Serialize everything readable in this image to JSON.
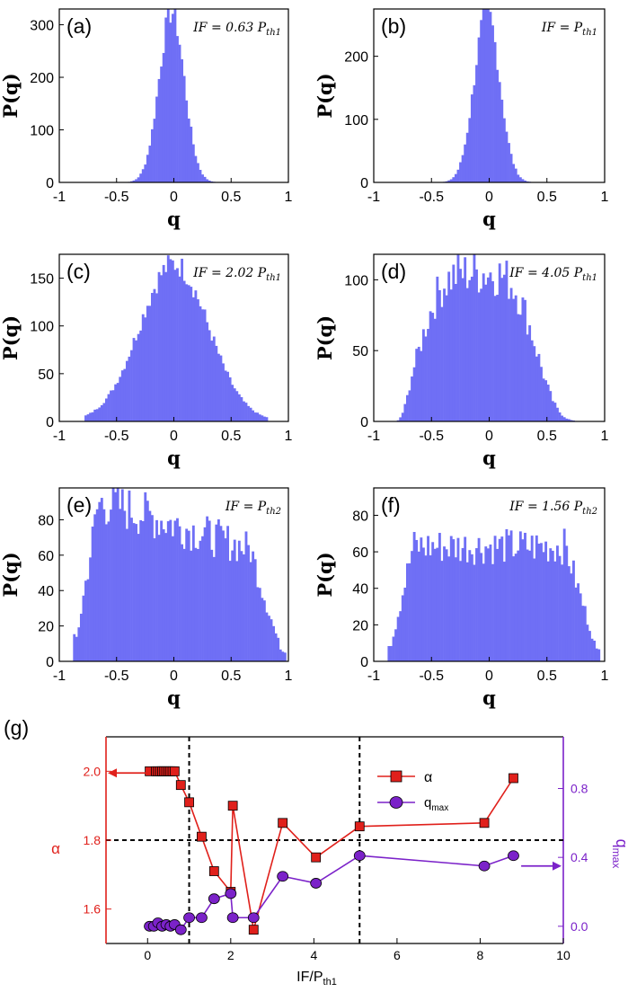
{
  "colors": {
    "histogram_fill": "#6f6ff5",
    "alpha_series": "#e0201b",
    "qmax_series": "#7b22c9",
    "axis": "#000000"
  },
  "chart_data": [
    {
      "type": "bar",
      "panel_label": "(a)",
      "annotation": {
        "prefix": "IF = 0.63 P",
        "sub": "th1"
      },
      "xlabel": "q",
      "ylabel": "P(q)",
      "xlim": [
        -1,
        1
      ],
      "ylim": [
        0,
        330
      ],
      "xticks": [
        "-1",
        "-0.5",
        "0",
        "0.5",
        "1"
      ],
      "xtick_values": [
        -1,
        -0.5,
        0,
        0.5,
        1
      ],
      "yticks": [
        "0",
        "100",
        "200",
        "300"
      ],
      "ytick_values": [
        0,
        100,
        200,
        300
      ],
      "shape": {
        "kind": "gauss",
        "center": -0.02,
        "width": 0.11,
        "peak": 325,
        "support": [
          -0.52,
          0.48
        ]
      }
    },
    {
      "type": "bar",
      "panel_label": "(b)",
      "annotation": {
        "prefix": "IF =  P",
        "sub": "th1"
      },
      "xlabel": "q",
      "ylabel": "P(q)",
      "xlim": [
        -1,
        1
      ],
      "ylim": [
        0,
        275
      ],
      "xticks": [
        "-1",
        "-0.5",
        "0",
        "0.5",
        "1"
      ],
      "xtick_values": [
        -1,
        -0.5,
        0,
        0.5,
        1
      ],
      "yticks": [
        "0",
        "100",
        "200"
      ],
      "ytick_values": [
        0,
        100,
        200
      ],
      "shape": {
        "kind": "gauss",
        "center": -0.02,
        "width": 0.11,
        "peak": 270,
        "support": [
          -0.55,
          0.58
        ]
      }
    },
    {
      "type": "bar",
      "panel_label": "(c)",
      "annotation": {
        "prefix": "IF = 2.02 P",
        "sub": "th1"
      },
      "xlabel": "q",
      "ylabel": "P(q)",
      "xlim": [
        -1,
        1
      ],
      "ylim": [
        0,
        175
      ],
      "xticks": [
        "-1",
        "-0.5",
        "0",
        "0.5",
        "1"
      ],
      "xtick_values": [
        -1,
        -0.5,
        0,
        0.5,
        1
      ],
      "yticks": [
        "0",
        "50",
        "100",
        "150"
      ],
      "ytick_values": [
        0,
        50,
        100,
        150
      ],
      "shape": {
        "kind": "gauss",
        "center": 0.0,
        "width": 0.3,
        "peak": 165,
        "support": [
          -0.78,
          0.82
        ]
      }
    },
    {
      "type": "bar",
      "panel_label": "(d)",
      "annotation": {
        "prefix": "IF = 4.05 P",
        "sub": "th1"
      },
      "xlabel": "q",
      "ylabel": "P(q)",
      "xlim": [
        -1,
        1
      ],
      "ylim": [
        0,
        118
      ],
      "xticks": [
        "-1",
        "-0.5",
        "0",
        "0.5",
        "1"
      ],
      "xtick_values": [
        -1,
        -0.5,
        0,
        0.5,
        1
      ],
      "yticks": [
        "0",
        "50",
        "100"
      ],
      "ytick_values": [
        0,
        50,
        100
      ],
      "shape": {
        "kind": "flat",
        "center": -0.1,
        "width": 0.55,
        "peak": 105,
        "support": [
          -0.8,
          0.98
        ]
      }
    },
    {
      "type": "bar",
      "panel_label": "(e)",
      "annotation": {
        "prefix": "IF = P",
        "sub": "th2"
      },
      "xlabel": "q",
      "ylabel": "P(q)",
      "xlim": [
        -1,
        1
      ],
      "ylim": [
        0,
        98
      ],
      "xticks": [
        "-1",
        "-0.5",
        "0",
        "0.5",
        "1"
      ],
      "xtick_values": [
        -1,
        -0.5,
        0,
        0.5,
        1
      ],
      "yticks": [
        "0",
        "20",
        "40",
        "60",
        "80"
      ],
      "ytick_values": [
        0,
        20,
        40,
        60,
        80
      ],
      "shape": {
        "kind": "plateau",
        "center": -0.35,
        "width": 1.3,
        "peak": 85,
        "support": [
          -0.88,
          0.97
        ]
      }
    },
    {
      "type": "bar",
      "panel_label": "(f)",
      "annotation": {
        "prefix": "IF = 1.56 P",
        "sub": "th2"
      },
      "xlabel": "q",
      "ylabel": "P(q)",
      "xlim": [
        -1,
        1
      ],
      "ylim": [
        0,
        95
      ],
      "xticks": [
        "-1",
        "-0.5",
        "0",
        "0.5",
        "1"
      ],
      "xtick_values": [
        -1,
        -0.5,
        0,
        0.5,
        1
      ],
      "yticks": [
        "0",
        "20",
        "40",
        "60",
        "80"
      ],
      "ytick_values": [
        0,
        20,
        40,
        60,
        80
      ],
      "shape": {
        "kind": "plateau",
        "center": 0.0,
        "width": 1.5,
        "peak": 63,
        "support": [
          -0.88,
          0.96
        ]
      }
    },
    {
      "type": "line",
      "panel_label": "(g)",
      "xlabel": {
        "prefix": "IF/P",
        "sub": "th1"
      },
      "ylabel_left": "α",
      "ylabel_right": {
        "prefix": "q",
        "sub": "max"
      },
      "xlim": [
        -1,
        10
      ],
      "ylim_left": [
        1.5,
        2.1
      ],
      "ylim_right": [
        -0.1,
        1.1
      ],
      "xticks": [
        "0",
        "2",
        "4",
        "6",
        "8",
        "10"
      ],
      "xtick_values": [
        0,
        2,
        4,
        6,
        8,
        10
      ],
      "yticks_left": [
        "1.6",
        "1.8",
        "2.0"
      ],
      "ytick_values_left": [
        1.6,
        1.8,
        2.0
      ],
      "yticks_right": [
        "0.0",
        "0.4",
        "0.8"
      ],
      "ytick_values_right": [
        0.0,
        0.4,
        0.8
      ],
      "hline_left": 1.8,
      "vlines": [
        1.0,
        5.1
      ],
      "series": [
        {
          "name": "α",
          "axis": "left",
          "marker": "square",
          "x": [
            0.05,
            0.2,
            0.25,
            0.3,
            0.35,
            0.4,
            0.45,
            0.5,
            0.55,
            0.6,
            0.65,
            0.8,
            1.0,
            1.3,
            1.6,
            2.0,
            2.05,
            2.55,
            3.25,
            4.05,
            5.1,
            8.1,
            8.8
          ],
          "y": [
            2.0,
            2.0,
            2.0,
            2.0,
            2.0,
            2.0,
            2.0,
            2.0,
            2.0,
            2.0,
            2.0,
            1.96,
            1.91,
            1.81,
            1.71,
            1.65,
            1.9,
            1.54,
            1.85,
            1.75,
            1.84,
            1.85,
            1.98
          ]
        },
        {
          "name": "q",
          "name_sub": "max",
          "axis": "right",
          "marker": "circle",
          "x": [
            0.05,
            0.15,
            0.25,
            0.35,
            0.45,
            0.55,
            0.65,
            0.8,
            1.0,
            1.3,
            1.6,
            2.0,
            2.05,
            2.55,
            3.25,
            4.05,
            5.1,
            8.1,
            8.8
          ],
          "y": [
            0.0,
            0.0,
            0.02,
            0.0,
            0.01,
            0.0,
            0.01,
            -0.02,
            0.05,
            0.05,
            0.16,
            0.19,
            0.05,
            0.05,
            0.29,
            0.25,
            0.41,
            0.35,
            0.41
          ]
        }
      ],
      "annotations": [
        {
          "kind": "arrow-left",
          "series": "α",
          "at_x": 0.1,
          "at_y": 1.995
        },
        {
          "kind": "arrow-right",
          "series": "q",
          "at_x": 8.9,
          "at_y": 0.35
        }
      ]
    }
  ]
}
